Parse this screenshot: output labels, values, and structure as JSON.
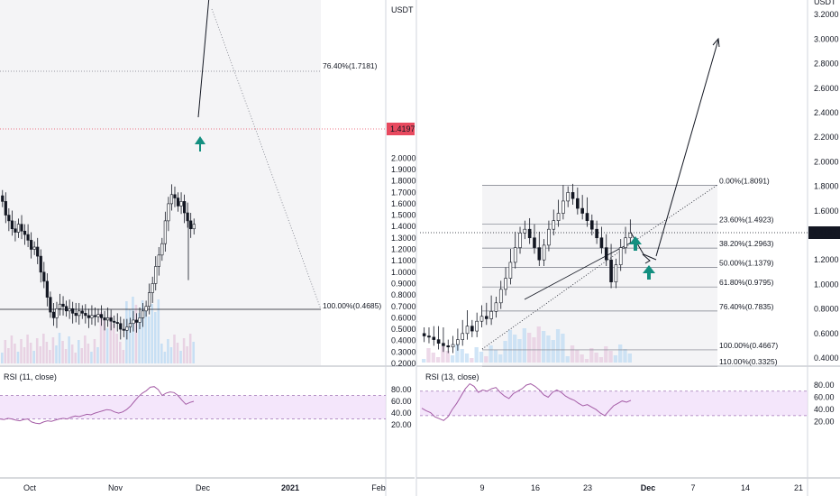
{
  "colors": {
    "up": "#ffffff",
    "down": "#131722",
    "price_line": "#e84a5f",
    "rsi_line": "#a45ca6",
    "rsi_band": "#efdcf9",
    "arrow": "#138f80",
    "vol_up": "#bcdaf4",
    "vol_down": "#e5c9df",
    "grid_bg": "#f4f4f6"
  },
  "left": {
    "axis_currency": "USDT",
    "price_ticks": [
      "2.0000",
      "1.9000",
      "1.8000",
      "1.7000",
      "1.6000",
      "1.5000",
      "1.4000",
      "1.3000",
      "1.2000",
      "1.1000",
      "1.0000",
      "0.9000",
      "0.8000",
      "0.7000",
      "0.6000",
      "0.5000",
      "0.4000",
      "0.3000",
      "0.2000"
    ],
    "last_price": "1.4197",
    "fib_labels": [
      "76.40%(1.7181)",
      "100.00%(0.4685)"
    ],
    "rsi_title": "RSI (11, close)",
    "rsi_ticks": [
      "80.00",
      "60.00",
      "40.00",
      "20.00"
    ],
    "time_labels": [
      "Oct",
      "Nov",
      "Dec",
      "2021",
      "Feb"
    ]
  },
  "right": {
    "axis_currency": "USDT",
    "price_ticks": [
      "3.2000",
      "3.0000",
      "2.8000",
      "2.6000",
      "2.4000",
      "2.2000",
      "2.0000",
      "1.8000",
      "1.6000",
      "1.4000",
      "1.2000",
      "1.0000",
      "0.8000",
      "0.6000",
      "0.4000"
    ],
    "last_price": "1.4197",
    "fib_labels": [
      "0.00%(1.8091)",
      "23.60%(1.4923)",
      "38.20%(1.2963)",
      "50.00%(1.1379)",
      "61.80%(0.9795)",
      "76.40%(0.7835)",
      "100.00%(0.4667)",
      "110.00%(0.3325)"
    ],
    "rsi_title": "RSI (13, close)",
    "rsi_ticks": [
      "80.00",
      "60.00",
      "40.00",
      "20.00"
    ],
    "time_labels": [
      "9",
      "16",
      "23",
      "Dec",
      "7",
      "14",
      "21"
    ]
  },
  "chart_data": [
    {
      "type": "candlestick",
      "title": "",
      "xlabel": "",
      "ylabel": "USDT",
      "ylim": [
        0.2,
        2.05
      ],
      "x_ticks": [
        "Oct",
        "Nov",
        "Dec",
        "2021",
        "Feb"
      ],
      "closes": [
        1.62,
        1.5,
        1.45,
        1.38,
        1.35,
        1.42,
        1.36,
        1.33,
        1.28,
        1.2,
        1.22,
        1.14,
        1.0,
        0.92,
        0.78,
        0.65,
        0.6,
        0.68,
        0.72,
        0.7,
        0.66,
        0.68,
        0.64,
        0.62,
        0.66,
        0.64,
        0.62,
        0.6,
        0.62,
        0.61,
        0.63,
        0.6,
        0.58,
        0.6,
        0.57,
        0.56,
        0.55,
        0.5,
        0.49,
        0.52,
        0.55,
        0.58,
        0.56,
        0.6,
        0.66,
        0.7,
        0.82,
        0.9,
        1.05,
        1.15,
        1.25,
        1.45,
        1.6,
        1.68,
        1.65,
        1.58,
        1.62,
        1.52,
        1.45,
        1.38,
        1.42
      ],
      "fibonacci": [
        {
          "level": "76.40%",
          "price": 1.7181
        },
        {
          "level": "100.00%",
          "price": 0.4685
        }
      ],
      "last_price": 1.4197
    },
    {
      "type": "candlestick",
      "title": "",
      "xlabel": "",
      "ylabel": "USDT",
      "ylim": [
        0.35,
        3.35
      ],
      "x_ticks": [
        "9",
        "16",
        "23",
        "Dec",
        "7",
        "14",
        "21"
      ],
      "closes": [
        0.58,
        0.57,
        0.55,
        0.52,
        0.5,
        0.49,
        0.51,
        0.55,
        0.6,
        0.66,
        0.62,
        0.7,
        0.74,
        0.72,
        0.78,
        0.85,
        0.96,
        1.05,
        1.18,
        1.3,
        1.42,
        1.45,
        1.38,
        1.3,
        1.2,
        1.32,
        1.45,
        1.52,
        1.58,
        1.68,
        1.75,
        1.7,
        1.62,
        1.58,
        1.52,
        1.45,
        1.38,
        1.3,
        1.2,
        1.02,
        1.16,
        1.3,
        1.38,
        1.42
      ],
      "fibonacci": [
        {
          "level": "0.00%",
          "price": 1.8091
        },
        {
          "level": "23.60%",
          "price": 1.4923
        },
        {
          "level": "38.20%",
          "price": 1.2963
        },
        {
          "level": "50.00%",
          "price": 1.1379
        },
        {
          "level": "61.80%",
          "price": 0.9795
        },
        {
          "level": "76.40%",
          "price": 0.7835
        },
        {
          "level": "100.00%",
          "price": 0.4667
        },
        {
          "level": "110.00%",
          "price": 0.3325
        }
      ],
      "last_price": 1.4197
    },
    {
      "type": "line",
      "title": "RSI (11, close)",
      "ylim": [
        10,
        90
      ],
      "band": [
        30,
        70
      ],
      "values": [
        30,
        29,
        31,
        30,
        28,
        27,
        29,
        30,
        25,
        23,
        22,
        25,
        27,
        26,
        28,
        30,
        31,
        30,
        33,
        35,
        34,
        36,
        38,
        37,
        40,
        42,
        44,
        46,
        45,
        42,
        40,
        42,
        46,
        52,
        60,
        68,
        74,
        78,
        84,
        85,
        80,
        70,
        74,
        76,
        75,
        70,
        62,
        55,
        58,
        60
      ]
    },
    {
      "type": "line",
      "title": "RSI (13, close)",
      "ylim": [
        5,
        90
      ],
      "band": [
        30,
        70
      ],
      "values": [
        42,
        38,
        35,
        28,
        25,
        22,
        28,
        40,
        50,
        62,
        74,
        82,
        78,
        68,
        72,
        70,
        74,
        76,
        68,
        62,
        58,
        66,
        70,
        74,
        80,
        82,
        78,
        72,
        64,
        60,
        68,
        72,
        68,
        62,
        58,
        55,
        50,
        46,
        48,
        44,
        40,
        34,
        30,
        38,
        46,
        50,
        54,
        52,
        55
      ]
    }
  ]
}
